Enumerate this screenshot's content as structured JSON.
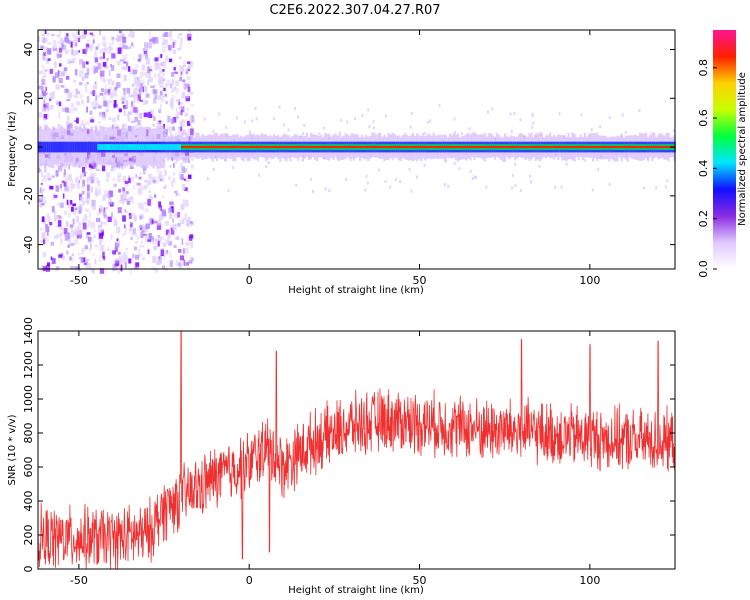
{
  "title": "C2E6.2022.307.04.27.R07",
  "colors": {
    "snr_line": "#f03030",
    "spectrogram_ridge": "#ff2000",
    "spectrogram_core": "#00cc66",
    "spectrogram_halo": "#7b00ff"
  },
  "chart_data": [
    {
      "type": "heatmap",
      "title": "C2E6.2022.307.04.27.R07",
      "xlabel": "Height of straight line (km)",
      "ylabel": "Frequency (Hz)",
      "xlim": [
        -62,
        125
      ],
      "ylim": [
        -50,
        48
      ],
      "xticks": [
        -50,
        0,
        50,
        100
      ],
      "yticks": [
        -40,
        -20,
        0,
        20,
        40
      ],
      "colorbar": {
        "label": "Normalized spectral amplitude",
        "range": [
          0,
          0.95
        ],
        "ticks": [
          "0.0",
          "0.2",
          "0.4",
          "0.6",
          "0.8"
        ],
        "tick_values": [
          0.0,
          0.2,
          0.4,
          0.6,
          0.8
        ],
        "colors": [
          "#ffffff",
          "#e0c8ff",
          "#8a2be2",
          "#1010ff",
          "#00e5ff",
          "#00ff40",
          "#c8ff00",
          "#ffd000",
          "#ff2000",
          "#ff1493"
        ]
      },
      "ridge": {
        "frequency": 0,
        "start_height": -20,
        "end_height": 125
      },
      "broadband_noise": {
        "x_range": [
          -62,
          -25
        ],
        "y_range": [
          -50,
          48
        ]
      }
    },
    {
      "type": "line",
      "xlabel": "Height of straight line (km)",
      "ylabel": "SNR (10 * v/v)",
      "xlim": [
        -62,
        125
      ],
      "ylim": [
        0,
        1400
      ],
      "xticks": [
        -50,
        0,
        50,
        100
      ],
      "yticks": [
        0,
        200,
        400,
        600,
        800,
        1000,
        1200,
        1400
      ],
      "trend": {
        "x": [
          -62,
          -50,
          -40,
          -30,
          -25,
          -20,
          -15,
          -10,
          -5,
          0,
          5,
          10,
          15,
          20,
          30,
          40,
          50,
          60,
          70,
          80,
          90,
          100,
          110,
          120,
          125
        ],
        "y": [
          180,
          180,
          180,
          200,
          350,
          420,
          470,
          540,
          580,
          620,
          720,
          600,
          690,
          760,
          840,
          880,
          860,
          840,
          820,
          810,
          790,
          770,
          760,
          750,
          750
        ]
      },
      "spread": 180,
      "spikes": [
        {
          "x": -20,
          "y": 1400
        },
        {
          "x": 8,
          "y": 1280
        },
        {
          "x": 80,
          "y": 1350
        },
        {
          "x": 100,
          "y": 1320
        },
        {
          "x": 120,
          "y": 1340
        }
      ],
      "dips": [
        {
          "x": 6,
          "y": 100
        },
        {
          "x": -2,
          "y": 60
        }
      ]
    }
  ]
}
